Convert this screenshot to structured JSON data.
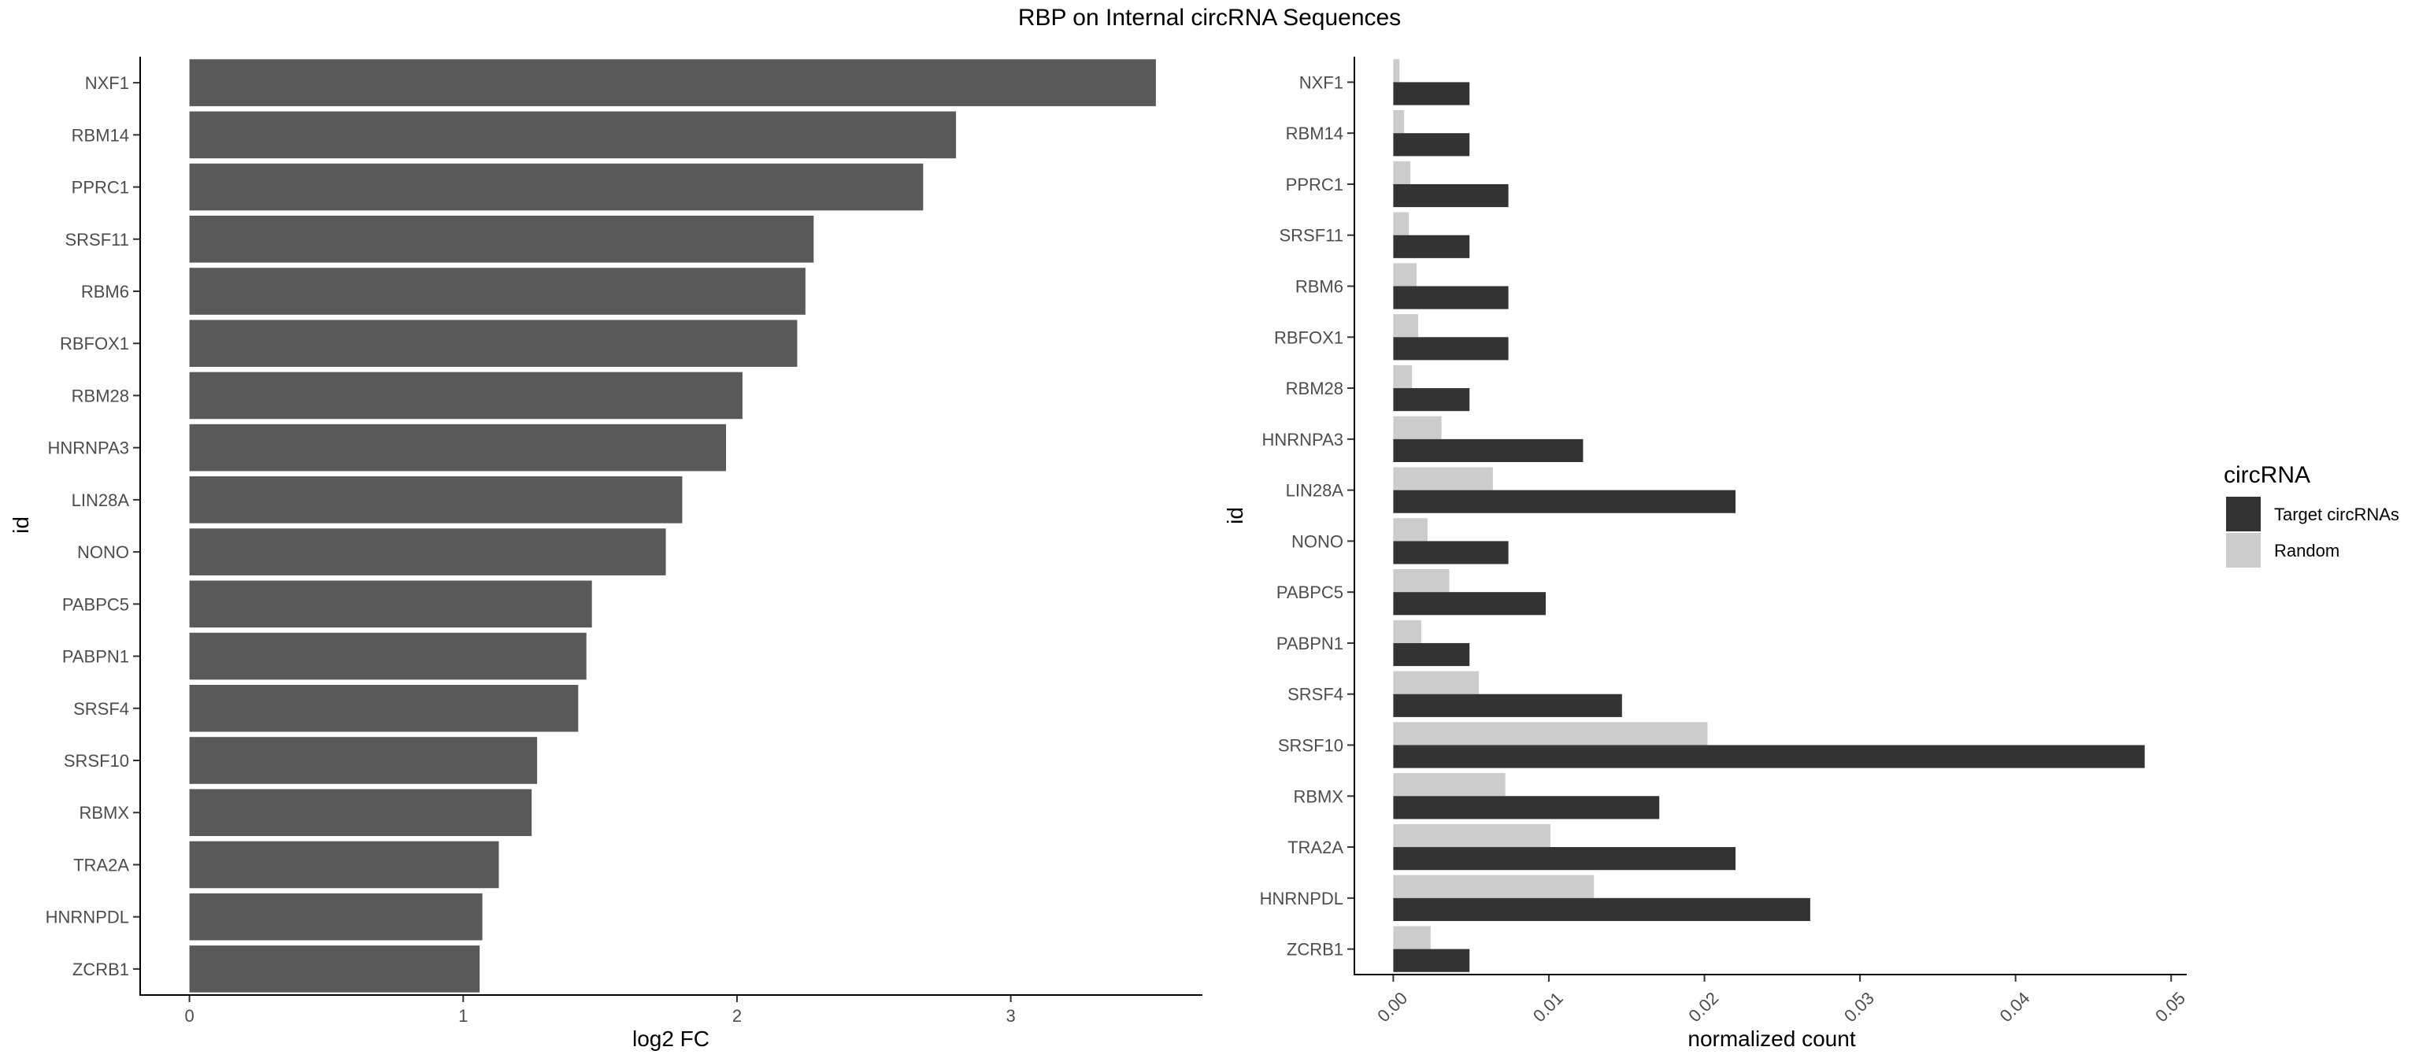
{
  "chart_data": [
    {
      "type": "bar",
      "orientation": "horizontal",
      "title": "RBP on Internal circRNA Sequences",
      "categories": [
        "NXF1",
        "RBM14",
        "PPRC1",
        "SRSF11",
        "RBM6",
        "RBFOX1",
        "RBM28",
        "HNRNPA3",
        "LIN28A",
        "NONO",
        "PABPC5",
        "PABPN1",
        "SRSF4",
        "SRSF10",
        "RBMX",
        "TRA2A",
        "HNRNPDL",
        "ZCRB1"
      ],
      "values": [
        3.53,
        2.8,
        2.68,
        2.28,
        2.25,
        2.22,
        2.02,
        1.96,
        1.8,
        1.74,
        1.47,
        1.45,
        1.42,
        1.27,
        1.25,
        1.13,
        1.07,
        1.06
      ],
      "xlabel": "log2 FC",
      "ylabel": "id",
      "xlim": [
        -0.18,
        3.7
      ],
      "xticks": [
        "0",
        "1",
        "2",
        "3"
      ],
      "grid": false,
      "colors": {
        "bar": "#595959"
      }
    },
    {
      "type": "bar",
      "orientation": "horizontal",
      "categories": [
        "NXF1",
        "RBM14",
        "PPRC1",
        "SRSF11",
        "RBM6",
        "RBFOX1",
        "RBM28",
        "HNRNPA3",
        "LIN28A",
        "NONO",
        "PABPC5",
        "PABPN1",
        "SRSF4",
        "SRSF10",
        "RBMX",
        "TRA2A",
        "HNRNPDL",
        "ZCRB1"
      ],
      "series": [
        {
          "name": "Target circRNAs",
          "color": "#333333",
          "values": [
            0.0049,
            0.0049,
            0.0074,
            0.0049,
            0.0074,
            0.0074,
            0.0049,
            0.0122,
            0.022,
            0.0074,
            0.0098,
            0.0049,
            0.0147,
            0.0483,
            0.0171,
            0.022,
            0.0268,
            0.0049
          ]
        },
        {
          "name": "Random",
          "color": "#cccccc",
          "values": [
            0.0004,
            0.0007,
            0.0011,
            0.001,
            0.0015,
            0.0016,
            0.0012,
            0.0031,
            0.0064,
            0.0022,
            0.0036,
            0.0018,
            0.0055,
            0.0202,
            0.0072,
            0.0101,
            0.0129,
            0.0024
          ]
        }
      ],
      "xlabel": "normalized count",
      "ylabel": "id",
      "xlim": [
        -0.0025,
        0.051
      ],
      "xticks": [
        "0.00",
        "0.01",
        "0.02",
        "0.03",
        "0.04",
        "0.05"
      ],
      "grid": false,
      "legend": {
        "title": "circRNA",
        "position": "right"
      }
    }
  ]
}
